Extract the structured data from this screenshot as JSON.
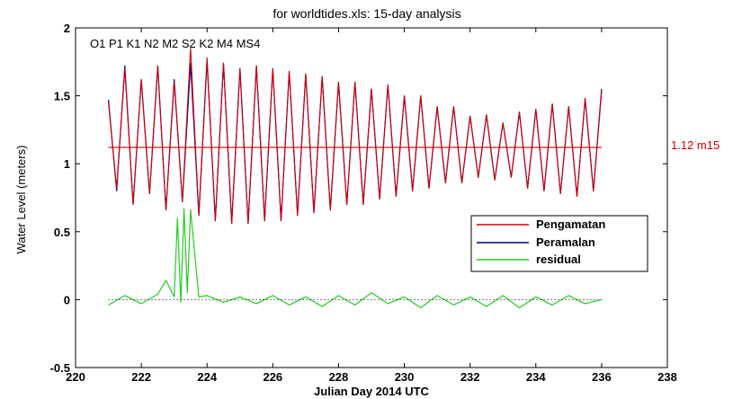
{
  "chart_data": {
    "type": "line",
    "title": "for worldtides.xls: 15-day analysis",
    "xlabel": "Julian Day 2014 UTC",
    "ylabel": "Water Level (meters)",
    "xlim": [
      220,
      238
    ],
    "ylim": [
      -0.5,
      2
    ],
    "xticks": [
      220,
      222,
      224,
      226,
      228,
      230,
      232,
      234,
      236,
      238
    ],
    "yticks": [
      -0.5,
      0,
      0.5,
      1,
      1.5,
      2
    ],
    "ytick_labels": [
      "-0.5",
      "0",
      "0.5",
      "1",
      "1.5",
      "2"
    ],
    "constituents_label": "O1 P1 K1 N2 M2 S2 K2 M4 MS4",
    "mean_level": 1.12,
    "mean_label": "1.12 m15",
    "legend_position": "right",
    "grid": false,
    "colors": {
      "Pengamatan": "#d00000",
      "Peramalan": "#00008b",
      "residual": "#22cc22",
      "mean_line": "#d00000",
      "mean_label": "#d00000"
    },
    "series": [
      {
        "name": "Pengamatan",
        "x": [
          221.0,
          221.25,
          221.5,
          221.75,
          222.0,
          222.25,
          222.5,
          222.75,
          223.0,
          223.25,
          223.5,
          223.75,
          224.0,
          224.25,
          224.5,
          224.75,
          225.0,
          225.25,
          225.5,
          225.75,
          226.0,
          226.25,
          226.5,
          226.75,
          227.0,
          227.25,
          227.5,
          227.75,
          228.0,
          228.25,
          228.5,
          228.75,
          229.0,
          229.25,
          229.5,
          229.75,
          230.0,
          230.25,
          230.5,
          230.75,
          231.0,
          231.25,
          231.5,
          231.75,
          232.0,
          232.25,
          232.5,
          232.75,
          233.0,
          233.25,
          233.5,
          233.75,
          234.0,
          234.25,
          234.5,
          234.75,
          235.0,
          235.25,
          235.5,
          235.75,
          236.0
        ],
        "y": [
          1.45,
          0.82,
          1.7,
          0.7,
          1.62,
          0.78,
          1.72,
          0.66,
          1.6,
          0.72,
          1.85,
          0.62,
          1.78,
          0.58,
          1.74,
          0.56,
          1.7,
          0.56,
          1.72,
          0.58,
          1.7,
          0.58,
          1.68,
          0.62,
          1.66,
          0.64,
          1.64,
          0.66,
          1.6,
          0.7,
          1.6,
          0.7,
          1.55,
          0.74,
          1.58,
          0.76,
          1.5,
          0.8,
          1.5,
          0.82,
          1.42,
          0.86,
          1.42,
          0.86,
          1.35,
          0.9,
          1.36,
          0.88,
          1.3,
          0.9,
          1.38,
          0.82,
          1.4,
          0.8,
          1.44,
          0.78,
          1.42,
          0.76,
          1.48,
          0.8,
          1.53
        ]
      },
      {
        "name": "Peramalan",
        "x": [
          221.0,
          221.25,
          221.5,
          221.75,
          222.0,
          222.25,
          222.5,
          222.75,
          223.0,
          223.25,
          223.5,
          223.75,
          224.0,
          224.25,
          224.5,
          224.75,
          225.0,
          225.25,
          225.5,
          225.75,
          226.0,
          226.25,
          226.5,
          226.75,
          227.0,
          227.25,
          227.5,
          227.75,
          228.0,
          228.25,
          228.5,
          228.75,
          229.0,
          229.25,
          229.5,
          229.75,
          230.0,
          230.25,
          230.5,
          230.75,
          231.0,
          231.25,
          231.5,
          231.75,
          232.0,
          232.25,
          232.5,
          232.75,
          233.0,
          233.25,
          233.5,
          233.75,
          234.0,
          234.25,
          234.5,
          234.75,
          235.0,
          235.25,
          235.5,
          235.75,
          236.0
        ],
        "y": [
          1.47,
          0.8,
          1.72,
          0.7,
          1.62,
          0.78,
          1.72,
          0.66,
          1.62,
          0.72,
          1.74,
          0.62,
          1.76,
          0.58,
          1.74,
          0.56,
          1.7,
          0.56,
          1.72,
          0.58,
          1.7,
          0.58,
          1.68,
          0.62,
          1.66,
          0.64,
          1.64,
          0.66,
          1.6,
          0.7,
          1.6,
          0.7,
          1.55,
          0.74,
          1.58,
          0.76,
          1.5,
          0.8,
          1.5,
          0.82,
          1.42,
          0.86,
          1.42,
          0.86,
          1.35,
          0.9,
          1.36,
          0.88,
          1.3,
          0.9,
          1.38,
          0.82,
          1.4,
          0.8,
          1.44,
          0.78,
          1.42,
          0.76,
          1.48,
          0.8,
          1.55
        ]
      },
      {
        "name": "residual",
        "x": [
          221.0,
          221.5,
          222.0,
          222.5,
          222.75,
          223.0,
          223.1,
          223.2,
          223.3,
          223.4,
          223.5,
          223.75,
          224.0,
          224.5,
          225.0,
          225.5,
          226.0,
          226.5,
          227.0,
          227.5,
          228.0,
          228.5,
          229.0,
          229.5,
          230.0,
          230.5,
          231.0,
          231.5,
          232.0,
          232.5,
          233.0,
          233.5,
          234.0,
          234.5,
          235.0,
          235.5,
          236.0
        ],
        "y": [
          -0.04,
          0.03,
          -0.03,
          0.04,
          0.14,
          0.02,
          0.6,
          -0.02,
          0.67,
          0.05,
          0.66,
          0.02,
          0.03,
          -0.02,
          0.02,
          -0.03,
          0.03,
          -0.04,
          0.02,
          -0.05,
          0.03,
          -0.04,
          0.05,
          -0.03,
          0.02,
          -0.06,
          0.03,
          -0.04,
          0.02,
          -0.05,
          0.03,
          -0.06,
          0.02,
          -0.04,
          0.03,
          -0.03,
          0.0
        ]
      }
    ]
  }
}
